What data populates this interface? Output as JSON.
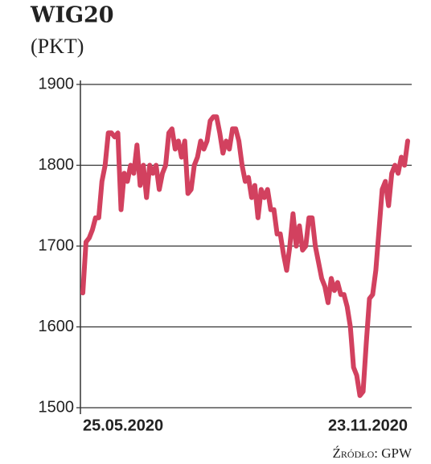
{
  "chart_data": {
    "type": "line",
    "title": "WIG20",
    "subtitle": "(PKT)",
    "source": "Źródło: GPW",
    "categories": [
      "25.05.2020",
      null,
      null,
      null,
      null,
      null,
      null,
      null,
      null,
      null,
      null,
      null,
      null,
      null,
      null,
      null,
      null,
      null,
      null,
      null,
      null,
      null,
      null,
      null,
      null,
      null,
      null,
      null,
      null,
      null,
      null,
      null,
      null,
      null,
      null,
      null,
      null,
      null,
      null,
      null,
      null,
      null,
      null,
      null,
      null,
      null,
      null,
      null,
      null,
      null,
      null,
      null,
      null,
      null,
      null,
      null,
      null,
      null,
      null,
      null,
      null,
      null,
      null,
      null,
      null,
      null,
      null,
      null,
      null,
      null,
      null,
      null,
      null,
      null,
      null,
      null,
      null,
      null,
      null,
      null,
      null,
      null,
      null,
      null,
      null,
      null,
      null,
      null,
      null,
      null,
      null,
      null,
      null,
      null,
      null,
      null,
      null,
      null,
      null,
      null,
      null,
      null,
      "23.11.2020"
    ],
    "values": [
      1642,
      1705,
      1710,
      1720,
      1735,
      1735,
      1780,
      1800,
      1840,
      1840,
      1835,
      1840,
      1745,
      1790,
      1780,
      1800,
      1790,
      1825,
      1775,
      1800,
      1760,
      1800,
      1790,
      1800,
      1770,
      1790,
      1800,
      1840,
      1845,
      1820,
      1830,
      1810,
      1830,
      1765,
      1770,
      1800,
      1810,
      1830,
      1820,
      1830,
      1855,
      1860,
      1860,
      1840,
      1815,
      1830,
      1820,
      1845,
      1845,
      1830,
      1800,
      1780,
      1785,
      1760,
      1775,
      1735,
      1770,
      1760,
      1770,
      1745,
      1745,
      1715,
      1715,
      1690,
      1670,
      1700,
      1740,
      1700,
      1725,
      1695,
      1700,
      1735,
      1735,
      1700,
      1680,
      1660,
      1650,
      1630,
      1660,
      1645,
      1655,
      1640,
      1640,
      1625,
      1600,
      1550,
      1540,
      1515,
      1520,
      1580,
      1635,
      1640,
      1670,
      1720,
      1770,
      1780,
      1750,
      1790,
      1800,
      1790,
      1810,
      1800,
      1830
    ],
    "color": "#d2415f",
    "ylim": [
      1500,
      1900
    ],
    "yticks": [
      1500,
      1600,
      1700,
      1800,
      1900
    ],
    "grid": true
  }
}
